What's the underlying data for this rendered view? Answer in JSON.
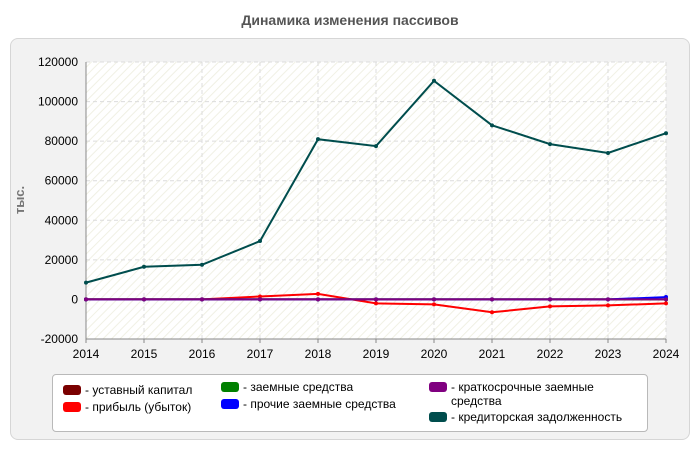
{
  "chart_data": {
    "type": "line",
    "title": "Динамика изменения пассивов",
    "ylabel": "тыс.",
    "xlabel": "",
    "x": [
      2014,
      2015,
      2016,
      2017,
      2018,
      2019,
      2020,
      2021,
      2022,
      2023,
      2024
    ],
    "ylim": [
      -20000,
      120000
    ],
    "yticks": [
      -20000,
      0,
      20000,
      40000,
      60000,
      80000,
      100000,
      120000
    ],
    "grid": true,
    "legend_position": "bottom",
    "series": [
      {
        "name": "уставный капитал",
        "color": "#7a0000",
        "values": [
          10,
          10,
          10,
          10,
          10,
          10,
          10,
          10,
          10,
          10,
          10
        ]
      },
      {
        "name": "прибыль (убыток)",
        "color": "#ff0000",
        "values": [
          0,
          0,
          0,
          1500,
          2800,
          -2000,
          -2500,
          -6500,
          -3500,
          -3000,
          -2000
        ]
      },
      {
        "name": "заемные средства",
        "color": "#008000",
        "values": [
          0,
          0,
          0,
          0,
          0,
          0,
          0,
          0,
          0,
          0,
          0
        ]
      },
      {
        "name": "прочие заемные средства",
        "color": "#0000ff",
        "values": [
          0,
          0,
          0,
          0,
          0,
          0,
          0,
          0,
          0,
          0,
          1200
        ]
      },
      {
        "name": "краткосрочные заемные средства",
        "color": "#800080",
        "values": [
          0,
          0,
          0,
          0,
          0,
          0,
          0,
          0,
          0,
          0,
          0
        ]
      },
      {
        "name": "кредиторская задолженность",
        "color": "#004d4d",
        "values": [
          8500,
          16500,
          17500,
          29500,
          81000,
          77500,
          110500,
          88000,
          78500,
          74000,
          84000
        ]
      }
    ]
  }
}
